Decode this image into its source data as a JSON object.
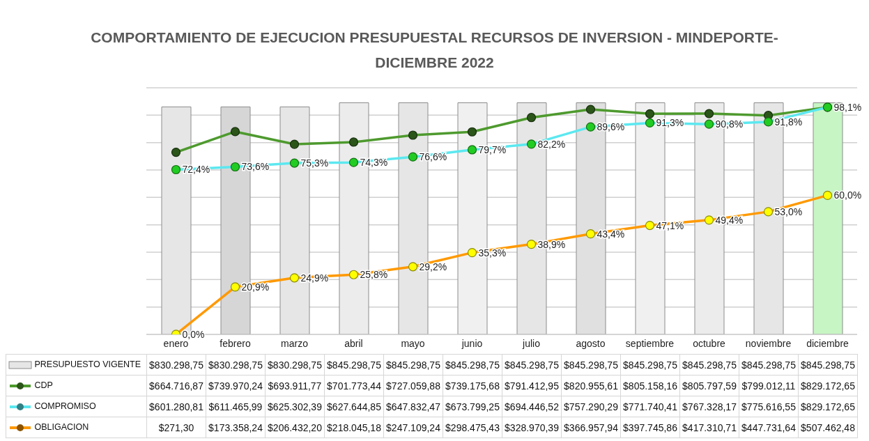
{
  "chart_data": {
    "type": "bar",
    "title": "COMPORTAMIENTO  DE EJECUCION PRESUPUESTAL RECURSOS DE INVERSION - MINDEPORTE-\nDICIEMBRE 2022",
    "categories": [
      "enero",
      "febrero",
      "marzo",
      "abril",
      "mayo",
      "junio",
      "julio",
      "agosto",
      "septiembre",
      "octubre",
      "noviembre",
      "diciembre"
    ],
    "ylim": [
      0,
      900000
    ],
    "yticks": [
      {
        "value": 0,
        "label": null
      },
      {
        "value": 100000,
        "label": null
      },
      {
        "value": 200000,
        "label": null
      },
      {
        "value": 300000,
        "label": null
      },
      {
        "value": 400000,
        "label": null
      },
      {
        "value": 500000,
        "label": null
      },
      {
        "value": 600000,
        "label": null
      },
      {
        "value": 700000,
        "label": null
      },
      {
        "value": 800000,
        "label": null
      },
      {
        "value": 900000,
        "label": null
      }
    ],
    "tick_labels": "x",
    "grid": "y",
    "legend": "bottom",
    "marker": "circle",
    "series": [
      {
        "name": "PRESUPUESTO VIGENTE",
        "color": "#e6e6e6",
        "colors": [
          "#e6e6e6",
          "#d6d6d6",
          "#e6e6e6",
          "#ececec",
          "#e6e6e6",
          "#f0f0f0",
          "#e6e6e6",
          "#e0e0e0",
          "#f0f0f0",
          "#ececec",
          "#e6e6e6",
          "#c8f5c4"
        ],
        "values": [
          830298.75,
          830298.75,
          830298.75,
          845298.75,
          845298.75,
          845298.75,
          845298.75,
          845298.75,
          845298.75,
          845298.75,
          845298.75,
          845298.75
        ],
        "value_labels": [
          "$830.298,75",
          "$830.298,75",
          "$830.298,75",
          "$845.298,75",
          "$845.298,75",
          "$845.298,75",
          "$845.298,75",
          "$845.298,75",
          "$845.298,75",
          "$845.298,75",
          "$845.298,75",
          "$845.298,75"
        ]
      },
      {
        "name": "CDP",
        "type": "line",
        "color": "#4e9a2e",
        "values": [
          664716.87,
          739970.24,
          693911.77,
          701773.44,
          727059.88,
          739175.68,
          791412.95,
          820955.61,
          805158.16,
          805797.59,
          799012.11,
          829172.65
        ],
        "value_labels": [
          "$664.716,87",
          "$739.970,24",
          "$693.911,77",
          "$701.773,44",
          "$727.059,88",
          "$739.175,68",
          "$791.412,95",
          "$820.955,61",
          "$805.158,16",
          "$805.797,59",
          "$799.012,11",
          "$829.172,65"
        ]
      },
      {
        "name": "COMPROMISO",
        "type": "line",
        "color": "#5ce8f0",
        "values": [
          601280.81,
          611465.99,
          625302.39,
          627644.85,
          647832.47,
          673799.25,
          694446.52,
          757290.29,
          771740.41,
          767328.17,
          775616.55,
          829172.65
        ],
        "value_labels": [
          "$601.280,81",
          "$611.465,99",
          "$625.302,39",
          "$627.644,85",
          "$647.832,47",
          "$673.799,25",
          "$694.446,52",
          "$757.290,29",
          "$771.740,41",
          "$767.328,17",
          "$775.616,55",
          "$829.172,65"
        ]
      },
      {
        "name": "OBLIGACION",
        "type": "line",
        "color": "#ff9900",
        "values": [
          271.3,
          173358.24,
          206432.2,
          218045.18,
          247109.24,
          298475.43,
          328970.39,
          366957.94,
          397745.86,
          417310.71,
          447731.64,
          507462.48
        ],
        "value_labels": [
          "$271,30",
          "$173.358,24",
          "$206.432,20",
          "$218.045,18",
          "$247.109,24",
          "$298.475,43",
          "$328.970,39",
          "$366.957,94",
          "$397.745,86",
          "$417.310,71",
          "$447.731,64",
          "$507.462,48"
        ]
      }
    ],
    "annotations": [
      {
        "text": "72,4%",
        "x": "enero",
        "y": 601280.81
      },
      {
        "text": "73,6%",
        "x": "febrero",
        "y": 611465.99
      },
      {
        "text": "75,3%",
        "x": "marzo",
        "y": 625302.39
      },
      {
        "text": "74,3%",
        "x": "abril",
        "y": 627644.85
      },
      {
        "text": "76,6%",
        "x": "mayo",
        "y": 647832.47
      },
      {
        "text": "79,7%",
        "x": "junio",
        "y": 673799.25
      },
      {
        "text": "82,2%",
        "x": "julio",
        "y": 694446.52
      },
      {
        "text": "89,6%",
        "x": "agosto",
        "y": 757290.29
      },
      {
        "text": "91,3%",
        "x": "septiembre",
        "y": 771740.41
      },
      {
        "text": "90,8%",
        "x": "octubre",
        "y": 767328.17
      },
      {
        "text": "91,8%",
        "x": "noviembre",
        "y": 775616.55
      },
      {
        "text": "98,1%",
        "x": "diciembre",
        "y": 829172.65
      },
      {
        "text": "0,0%",
        "x": "enero",
        "y": 271.3
      },
      {
        "text": "20,9%",
        "x": "febrero",
        "y": 173358.24
      },
      {
        "text": "24,9%",
        "x": "marzo",
        "y": 206432.2
      },
      {
        "text": "25,8%",
        "x": "abril",
        "y": 218045.18
      },
      {
        "text": "29,2%",
        "x": "mayo",
        "y": 247109.24
      },
      {
        "text": "35,3%",
        "x": "junio",
        "y": 298475.43
      },
      {
        "text": "38,9%",
        "x": "julio",
        "y": 328970.39
      },
      {
        "text": "43,4%",
        "x": "agosto",
        "y": 366957.94
      },
      {
        "text": "47,1%",
        "x": "septiembre",
        "y": 397745.86
      },
      {
        "text": "49,4%",
        "x": "octubre",
        "y": 417310.71
      },
      {
        "text": "53,0%",
        "x": "noviembre",
        "y": 447731.64
      },
      {
        "text": "60,0%",
        "x": "diciembre",
        "y": 507462.48
      }
    ]
  }
}
